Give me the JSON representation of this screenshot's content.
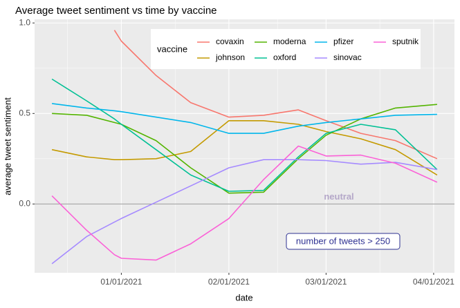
{
  "chart_data": {
    "type": "line",
    "title": "Average tweet sentiment vs time by vaccine",
    "x_label": "date",
    "y_label": "average tweet sentiment",
    "legend_title": "vaccine",
    "legend_position": "top",
    "x": [
      "2020-12-12",
      "2020-12-22",
      "2020-12-30",
      "2021-01-01",
      "2021-01-11",
      "2021-01-21",
      "2021-02-01",
      "2021-02-11",
      "2021-02-21",
      "2021-03-01",
      "2021-03-11",
      "2021-03-21",
      "2021-04-02"
    ],
    "xlim": [
      "2020-12-07",
      "2021-04-07"
    ],
    "xticks": [
      {
        "value": "2021-01-01",
        "label": "01/01/2021"
      },
      {
        "value": "2021-02-01",
        "label": "02/01/2021"
      },
      {
        "value": "2021-03-01",
        "label": "03/01/2021"
      },
      {
        "value": "2021-04-01",
        "label": "04/01/2021"
      }
    ],
    "ylim": [
      -0.38,
      1.02
    ],
    "yticks": [
      {
        "value": 0,
        "label": "0.0"
      },
      0.5,
      {
        "value": 1,
        "label": "1.0"
      }
    ],
    "grid": true,
    "reference_line": 0,
    "reference_label": "neutral",
    "annotation": "number of tweets > 250",
    "series": [
      {
        "name": "covaxin",
        "color": "#F8766D",
        "values": [
          null,
          null,
          0.96,
          0.9,
          0.71,
          0.56,
          0.48,
          0.49,
          0.52,
          0.46,
          0.39,
          0.35,
          0.25
        ]
      },
      {
        "name": "johnson",
        "color": "#C49A00",
        "values": [
          0.3,
          0.26,
          0.245,
          0.245,
          0.25,
          0.29,
          0.46,
          0.46,
          0.44,
          0.4,
          0.36,
          0.3,
          0.16
        ]
      },
      {
        "name": "moderna",
        "color": "#53B400",
        "values": [
          0.5,
          0.49,
          0.45,
          0.44,
          0.35,
          0.2,
          0.06,
          0.065,
          0.25,
          0.38,
          0.47,
          0.53,
          0.55
        ]
      },
      {
        "name": "oxford",
        "color": "#00C094",
        "values": [
          0.69,
          0.57,
          0.47,
          0.44,
          0.3,
          0.16,
          0.07,
          0.075,
          0.26,
          0.39,
          0.44,
          0.41,
          0.19
        ]
      },
      {
        "name": "pfizer",
        "color": "#00B6EB",
        "values": [
          0.555,
          0.53,
          0.515,
          0.51,
          0.48,
          0.45,
          0.39,
          0.39,
          0.43,
          0.45,
          0.47,
          0.49,
          0.495
        ]
      },
      {
        "name": "sinovac",
        "color": "#A58AFF",
        "values": [
          -0.33,
          -0.18,
          -0.1,
          -0.08,
          0.01,
          0.1,
          0.2,
          0.245,
          0.245,
          0.24,
          0.22,
          0.23,
          0.19
        ]
      },
      {
        "name": "sputnik",
        "color": "#FB61D7",
        "values": [
          0.045,
          -0.145,
          -0.28,
          -0.3,
          -0.31,
          -0.22,
          -0.08,
          0.135,
          0.32,
          0.265,
          0.27,
          0.225,
          0.12
        ]
      }
    ]
  }
}
